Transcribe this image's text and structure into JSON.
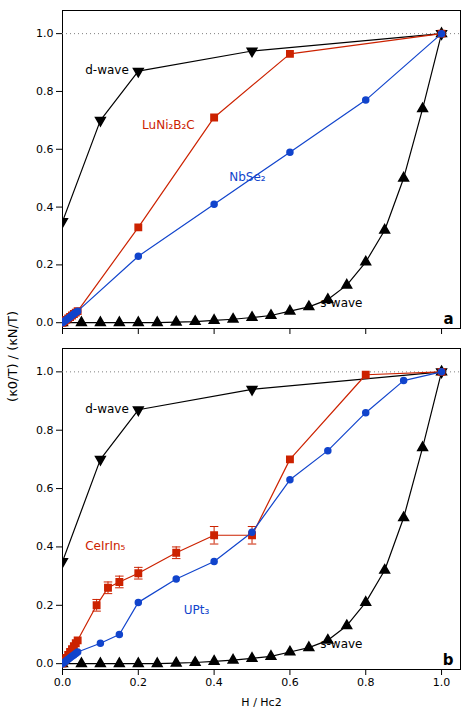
{
  "chart_data": [
    {
      "type": "line",
      "panel_label": "a",
      "y_label": "(κ0/T) / (κN/T)",
      "xlim": [
        0,
        1.05
      ],
      "ylim": [
        -0.02,
        1.08
      ],
      "xticks": [
        0,
        0.2,
        0.4,
        0.6,
        0.8,
        1
      ],
      "yticks": [
        {
          "value": 0,
          "label": "0.0"
        },
        0.2,
        0.4,
        0.6,
        0.8,
        {
          "value": 1,
          "label": "1.0"
        }
      ],
      "tick_labels": "y",
      "reference_lines": [
        {
          "y": 1.0,
          "line_style": "dotted"
        }
      ],
      "series": [
        {
          "name": "d-wave",
          "color": "black",
          "marker": "triangle-down",
          "x": [
            0.0,
            0.1,
            0.2,
            0.5,
            1.0
          ],
          "values": [
            0.35,
            0.7,
            0.87,
            0.94,
            1.0
          ]
        },
        {
          "name": "s-wave",
          "color": "black",
          "marker": "triangle-up",
          "x": [
            0.0,
            0.05,
            0.1,
            0.15,
            0.2,
            0.25,
            0.3,
            0.35,
            0.4,
            0.45,
            0.5,
            0.55,
            0.6,
            0.65,
            0.7,
            0.75,
            0.8,
            0.85,
            0.9,
            0.95,
            1.0
          ],
          "values": [
            0.0,
            0.0,
            0.0,
            0.0,
            0.0,
            0.0,
            0.002,
            0.004,
            0.008,
            0.012,
            0.018,
            0.025,
            0.04,
            0.055,
            0.08,
            0.13,
            0.21,
            0.32,
            0.5,
            0.74,
            1.0
          ]
        },
        {
          "name": "LuNi₂B₂C",
          "color": "#cc2200",
          "marker": "square",
          "x": [
            0.0,
            0.005,
            0.01,
            0.015,
            0.02,
            0.025,
            0.03,
            0.035,
            0.04,
            0.2,
            0.4,
            0.6,
            1.0
          ],
          "values": [
            0.0,
            0.005,
            0.01,
            0.015,
            0.02,
            0.025,
            0.03,
            0.035,
            0.04,
            0.33,
            0.71,
            0.93,
            1.0
          ]
        },
        {
          "name": "NbSe₂",
          "color": "#1144cc",
          "marker": "circle",
          "x": [
            0.0,
            0.005,
            0.01,
            0.015,
            0.02,
            0.025,
            0.03,
            0.035,
            0.04,
            0.2,
            0.4,
            0.6,
            0.8,
            1.0
          ],
          "values": [
            0.0,
            0.005,
            0.01,
            0.015,
            0.02,
            0.025,
            0.03,
            0.035,
            0.04,
            0.23,
            0.41,
            0.59,
            0.77,
            1.0
          ]
        }
      ],
      "annotations": [
        {
          "text": "d-wave",
          "x": 0.06,
          "y": 0.86,
          "color": "black"
        },
        {
          "text": "LuNi₂B₂C",
          "x": 0.21,
          "y": 0.67,
          "color": "#cc2200"
        },
        {
          "text": "NbSe₂",
          "x": 0.44,
          "y": 0.49,
          "color": "#1144cc"
        },
        {
          "text": "s-wave",
          "x": 0.68,
          "y": 0.055,
          "color": "black"
        }
      ]
    },
    {
      "type": "line",
      "panel_label": "b",
      "x_label": "H / Hc2",
      "xlim": [
        0,
        1.05
      ],
      "ylim": [
        -0.02,
        1.08
      ],
      "xticks": [
        {
          "value": 0,
          "label": "0.0"
        },
        0.2,
        0.4,
        0.6,
        0.8,
        {
          "value": 1,
          "label": "1.0"
        }
      ],
      "yticks": [
        {
          "value": 0,
          "label": "0.0"
        },
        0.2,
        0.4,
        0.6,
        0.8,
        {
          "value": 1,
          "label": "1.0"
        }
      ],
      "reference_lines": [
        {
          "y": 1.0,
          "line_style": "dotted"
        }
      ],
      "series": [
        {
          "name": "d-wave",
          "color": "black",
          "marker": "triangle-down",
          "x": [
            0.0,
            0.1,
            0.2,
            0.5,
            1.0
          ],
          "values": [
            0.35,
            0.7,
            0.87,
            0.94,
            1.0
          ]
        },
        {
          "name": "s-wave",
          "color": "black",
          "marker": "triangle-up",
          "x": [
            0.0,
            0.05,
            0.1,
            0.15,
            0.2,
            0.25,
            0.3,
            0.35,
            0.4,
            0.45,
            0.5,
            0.55,
            0.6,
            0.65,
            0.7,
            0.75,
            0.8,
            0.85,
            0.9,
            0.95,
            1.0
          ],
          "values": [
            0.0,
            0.0,
            0.0,
            0.0,
            0.0,
            0.0,
            0.002,
            0.004,
            0.008,
            0.012,
            0.018,
            0.025,
            0.04,
            0.055,
            0.08,
            0.13,
            0.21,
            0.32,
            0.5,
            0.74,
            1.0
          ]
        },
        {
          "name": "CeIrIn₅",
          "color": "#cc2200",
          "marker": "square",
          "x": [
            0.0,
            0.005,
            0.01,
            0.015,
            0.02,
            0.025,
            0.03,
            0.035,
            0.04,
            0.09,
            0.12,
            0.15,
            0.2,
            0.3,
            0.4,
            0.5,
            0.6,
            0.8,
            1.0
          ],
          "values": [
            0.0,
            0.01,
            0.02,
            0.03,
            0.04,
            0.05,
            0.06,
            0.07,
            0.08,
            0.2,
            0.26,
            0.28,
            0.31,
            0.38,
            0.44,
            0.44,
            0.7,
            0.99,
            1.0
          ],
          "yerr": [
            0.0,
            0.0,
            0.0,
            0.0,
            0.0,
            0.0,
            0.0,
            0.0,
            0.0,
            0.02,
            0.02,
            0.02,
            0.02,
            0.02,
            0.03,
            0.03,
            0.0,
            0.0,
            0.0
          ]
        },
        {
          "name": "UPt₃",
          "color": "#1144cc",
          "marker": "circle",
          "x": [
            0.0,
            0.005,
            0.01,
            0.015,
            0.02,
            0.025,
            0.03,
            0.035,
            0.04,
            0.1,
            0.15,
            0.2,
            0.3,
            0.4,
            0.5,
            0.6,
            0.7,
            0.8,
            0.9,
            1.0
          ],
          "values": [
            0.0,
            0.005,
            0.01,
            0.015,
            0.02,
            0.025,
            0.03,
            0.035,
            0.04,
            0.07,
            0.1,
            0.21,
            0.29,
            0.35,
            0.45,
            0.63,
            0.73,
            0.86,
            0.97,
            1.0
          ]
        }
      ],
      "annotations": [
        {
          "text": "d-wave",
          "x": 0.06,
          "y": 0.86,
          "color": "black"
        },
        {
          "text": "CeIrIn₅",
          "x": 0.06,
          "y": 0.39,
          "color": "#cc2200"
        },
        {
          "text": "UPt₃",
          "x": 0.32,
          "y": 0.17,
          "color": "#1144cc"
        },
        {
          "text": "s-wave",
          "x": 0.68,
          "y": 0.055,
          "color": "black"
        }
      ]
    }
  ]
}
